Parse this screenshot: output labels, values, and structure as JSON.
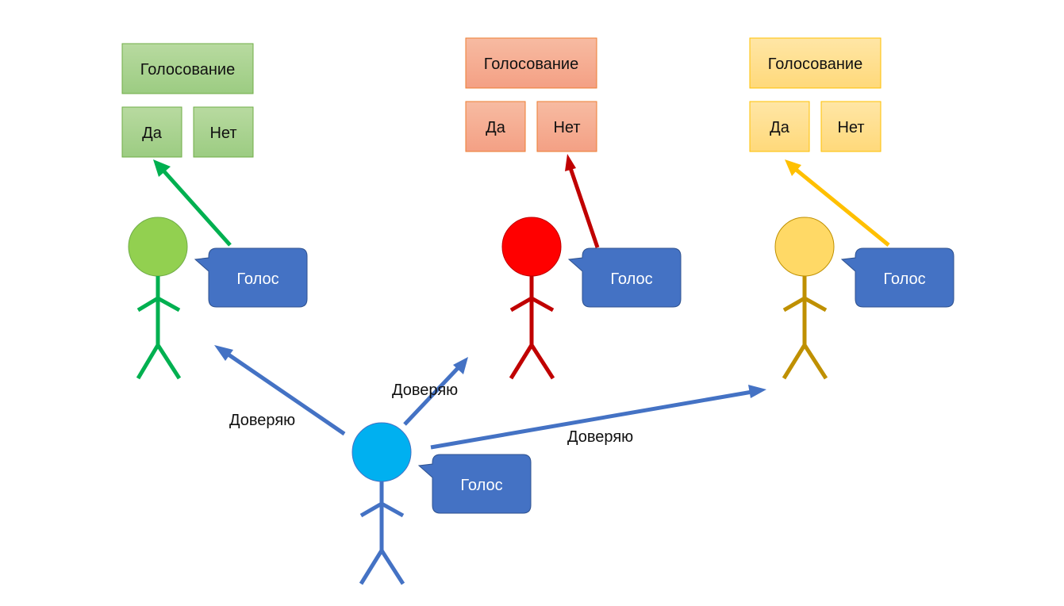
{
  "colors": {
    "green": "#00b050",
    "green_head": "#92d050",
    "green_box": "#a9d18e",
    "red": "#c00000",
    "red_head": "#ff0000",
    "red_box": "#f4a688",
    "yellow": "#ffc000",
    "yellow_body": "#bf9000",
    "yellow_head": "#ffd966",
    "yellow_box": "#ffe08a",
    "blue": "#4472c4",
    "blue_head": "#00b0f0",
    "bubble": "#4472c4"
  },
  "panels": [
    {
      "title": "Голосование",
      "yes": "Да",
      "no": "Нет"
    },
    {
      "title": "Голосование",
      "yes": "Да",
      "no": "Нет"
    },
    {
      "title": "Голосование",
      "yes": "Да",
      "no": "Нет"
    }
  ],
  "bubbles": [
    "Голос",
    "Голос",
    "Голос",
    "Голос"
  ],
  "trust_labels": [
    "Доверяю",
    "Доверяю",
    "Доверяю"
  ]
}
